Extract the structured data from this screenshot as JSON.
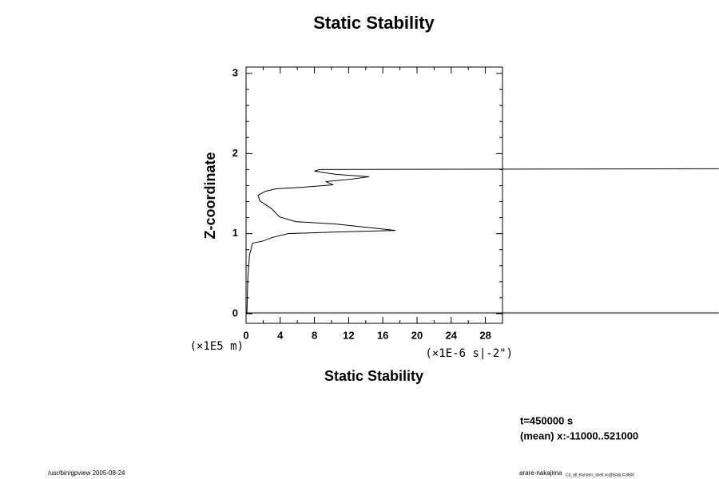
{
  "chart_data": {
    "type": "line",
    "title": "Static Stability",
    "ylabel": "Z-coordinate",
    "xlabel": "Static Stability",
    "yunit": "(×1E5 m)",
    "xunit": "(×1E-6 s|-2\")",
    "annotations": [
      "t=450000 s",
      "(mean) x:-11000..521000"
    ],
    "footer_left": "/usr/bin/gpview 2005-08-24",
    "footer_right": "arare-nakajima",
    "footer_right_small": "C3_all_Karsten_shell.nc@Stab,t=3600",
    "xlim": [
      0,
      30
    ],
    "ylim": [
      -0.12,
      3.08
    ],
    "xticks": [
      0,
      4,
      8,
      12,
      16,
      20,
      24,
      28
    ],
    "yticks": [
      0,
      1,
      2,
      3
    ],
    "xminorticks": [
      2,
      6,
      10,
      14,
      18,
      22,
      26
    ],
    "yminorticks": [
      0.2,
      0.4,
      0.6,
      0.8,
      1.2,
      1.4,
      1.6,
      1.8,
      2.2,
      2.4,
      2.6,
      2.8
    ],
    "series": [
      {
        "color": "#000000",
        "x": [
          55.3,
          0.1,
          0.2,
          0.4,
          0.75,
          2.05,
          3.0,
          4.9,
          10.5,
          17.5,
          10.5,
          5.8,
          3.9,
          3.0,
          1.6,
          1.4,
          2.3,
          3.5,
          6.7,
          10.2,
          9.3,
          12.3,
          14.4,
          10.5,
          8.0,
          8.6,
          55.3
        ],
        "values": [
          0.01,
          0.01,
          0.43,
          0.73,
          0.88,
          0.91,
          0.95,
          1.0,
          1.02,
          1.04,
          1.12,
          1.15,
          1.21,
          1.31,
          1.41,
          1.48,
          1.53,
          1.56,
          1.58,
          1.61,
          1.65,
          1.68,
          1.71,
          1.74,
          1.78,
          1.8,
          1.81
        ]
      }
    ]
  }
}
